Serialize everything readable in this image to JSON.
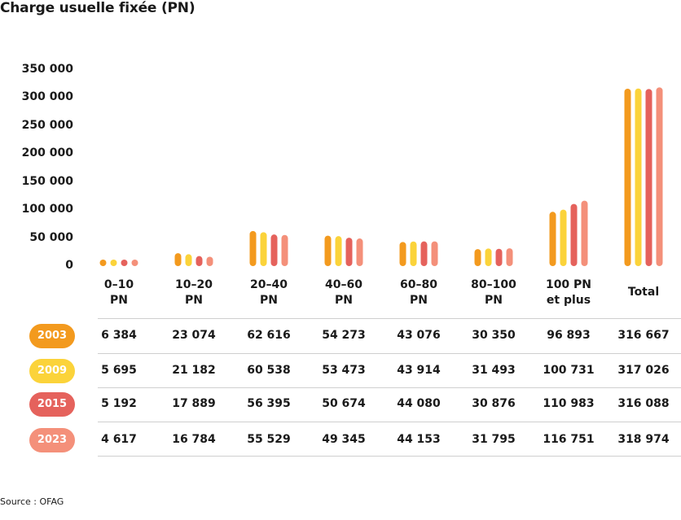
{
  "title": "Charge usuelle fixée (PN)",
  "source": "Source : OFAG",
  "chart_data": {
    "type": "bar",
    "categories": [
      [
        "0–10",
        "PN"
      ],
      [
        "10–20",
        "PN"
      ],
      [
        "20–40",
        "PN"
      ],
      [
        "40–60",
        "PN"
      ],
      [
        "60–80",
        "PN"
      ],
      [
        "80–100",
        "PN"
      ],
      [
        "100 PN",
        "et plus"
      ],
      [
        "Total"
      ]
    ],
    "ylim": [
      0,
      350000
    ],
    "yticks": [
      "0",
      "50 000",
      "100 000",
      "150 000",
      "200 000",
      "250 000",
      "300 000",
      "350 000"
    ],
    "series": [
      {
        "name": "2003",
        "color": "#f39a1e",
        "values": [
          6384,
          23074,
          62616,
          54273,
          43076,
          30350,
          96893,
          316667
        ],
        "labels": [
          "6 384",
          "23 074",
          "62 616",
          "54 273",
          "43 076",
          "30 350",
          "96 893",
          "316 667"
        ]
      },
      {
        "name": "2009",
        "color": "#fbd33a",
        "values": [
          5695,
          21182,
          60538,
          53473,
          43914,
          31493,
          100731,
          317026
        ],
        "labels": [
          "5 695",
          "21 182",
          "60 538",
          "53 473",
          "43 914",
          "31 493",
          "100 731",
          "317 026"
        ]
      },
      {
        "name": "2015",
        "color": "#e5625c",
        "values": [
          5192,
          17889,
          56395,
          50674,
          44080,
          30876,
          110983,
          316088
        ],
        "labels": [
          "5 192",
          "17 889",
          "56 395",
          "50 674",
          "44 080",
          "30 876",
          "110 983",
          "316 088"
        ]
      },
      {
        "name": "2023",
        "color": "#f4907a",
        "values": [
          4617,
          16784,
          55529,
          49345,
          44153,
          31795,
          116751,
          318974
        ],
        "labels": [
          "4 617",
          "16 784",
          "55 529",
          "49 345",
          "44 153",
          "31 795",
          "116 751",
          "318 974"
        ]
      }
    ]
  }
}
